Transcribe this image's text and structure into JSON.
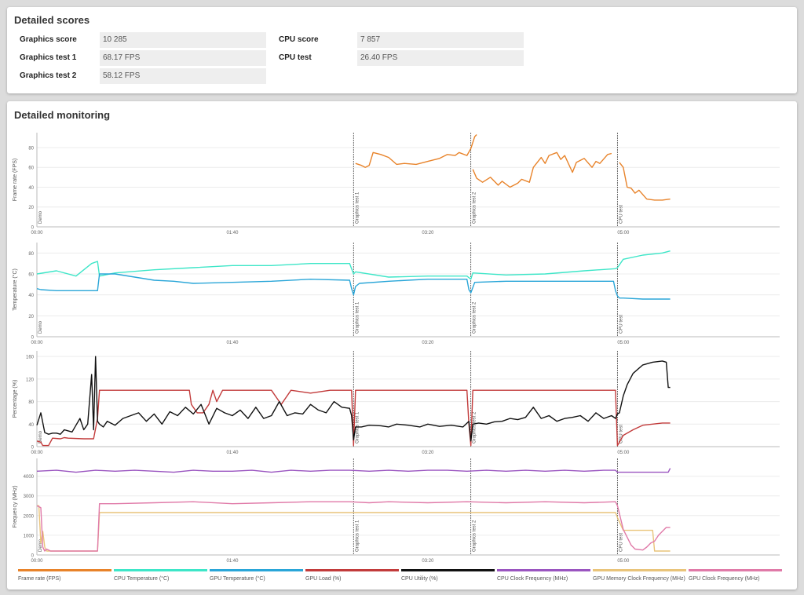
{
  "scores": {
    "title": "Detailed scores",
    "rows": [
      {
        "label": "Graphics score",
        "value": "10 285"
      },
      {
        "label": "Graphics test 1",
        "value": "68.17 FPS"
      },
      {
        "label": "Graphics test 2",
        "value": "58.12 FPS"
      },
      {
        "label": "CPU score",
        "value": "7 857"
      },
      {
        "label": "CPU test",
        "value": "26.40 FPS"
      }
    ]
  },
  "monitoring": {
    "title": "Detailed monitoring"
  },
  "legend": [
    {
      "label": "Frame rate (FPS)",
      "color": "#e8832a"
    },
    {
      "label": "CPU Temperature (°C)",
      "color": "#3ee6c8"
    },
    {
      "label": "GPU Temperature (°C)",
      "color": "#2aa6d8"
    },
    {
      "label": "GPU Load (%)",
      "color": "#c23b3b"
    },
    {
      "label": "CPU Utility (%)",
      "color": "#111111"
    },
    {
      "label": "CPU Clock Frequency (MHz)",
      "color": "#9a55c0"
    },
    {
      "label": "GPU Memory Clock Frequency (MHz)",
      "color": "#e9c47a"
    },
    {
      "label": "GPU Clock Frequency (MHz)",
      "color": "#e07aa8"
    }
  ],
  "chart_data": [
    {
      "type": "line",
      "ylabel": "Frame rate (FPS)",
      "ylim": [
        0,
        95
      ],
      "yticks": [
        0,
        20,
        40,
        60,
        80
      ],
      "xlim": [
        0,
        380
      ],
      "xticks": [
        {
          "v": 0,
          "label": "00:00"
        },
        {
          "v": 100,
          "label": "01:40"
        },
        {
          "v": 200,
          "label": "03:20"
        },
        {
          "v": 300,
          "label": "05:00"
        }
      ],
      "markers": [
        {
          "v": 0,
          "label": "Demo"
        },
        {
          "v": 162,
          "label": "Graphics test 1"
        },
        {
          "v": 222,
          "label": "Graphics test 2"
        },
        {
          "v": 297,
          "label": "CPU test"
        }
      ],
      "series": [
        {
          "name": "Frame rate (FPS)",
          "color": "#e8832a",
          "x": [
            163,
            166,
            168,
            170,
            172,
            176,
            180,
            184,
            188,
            194,
            200,
            206,
            210,
            214,
            216,
            220,
            222,
            224,
            225
          ],
          "y": [
            64,
            62,
            60,
            62,
            75,
            73,
            70,
            63,
            64,
            63,
            66,
            69,
            73,
            72,
            75,
            72,
            79,
            91,
            93
          ]
        },
        {
          "name": "Frame rate (FPS)",
          "color": "#e8832a",
          "x": [
            223,
            225,
            228,
            232,
            236,
            238,
            242,
            246,
            248,
            252,
            254,
            258,
            260,
            262,
            266,
            268,
            270,
            274,
            276,
            280,
            284,
            286,
            288,
            292,
            294
          ],
          "y": [
            58,
            49,
            45,
            50,
            42,
            46,
            40,
            44,
            48,
            45,
            60,
            70,
            64,
            72,
            75,
            68,
            72,
            55,
            65,
            69,
            60,
            66,
            64,
            73,
            74
          ]
        },
        {
          "name": "Frame rate (FPS)",
          "color": "#e8832a",
          "x": [
            298,
            300,
            302,
            304,
            306,
            308,
            312,
            316,
            320,
            324
          ],
          "y": [
            65,
            60,
            40,
            39,
            34,
            37,
            28,
            27,
            27,
            28
          ]
        }
      ]
    },
    {
      "type": "line",
      "ylabel": "Temperature (°C)",
      "ylim": [
        0,
        90
      ],
      "yticks": [
        0,
        20,
        40,
        60,
        80
      ],
      "xlim": [
        0,
        380
      ],
      "xticks": [
        {
          "v": 0,
          "label": "00:00"
        },
        {
          "v": 100,
          "label": "01:40"
        },
        {
          "v": 200,
          "label": "03:20"
        },
        {
          "v": 300,
          "label": "05:00"
        }
      ],
      "markers": [
        {
          "v": 0,
          "label": "Demo"
        },
        {
          "v": 162,
          "label": "Graphics test 1"
        },
        {
          "v": 222,
          "label": "Graphics test 2"
        },
        {
          "v": 297,
          "label": "CPU test"
        }
      ],
      "series": [
        {
          "name": "CPU Temperature (°C)",
          "color": "#3ee6c8",
          "x": [
            0,
            10,
            20,
            28,
            31,
            32,
            40,
            60,
            80,
            100,
            120,
            140,
            160,
            162,
            163,
            180,
            200,
            220,
            222,
            223,
            240,
            260,
            280,
            296,
            297,
            300,
            310,
            320,
            324
          ],
          "y": [
            60,
            63,
            58,
            70,
            72,
            58,
            61,
            64,
            66,
            68,
            68,
            70,
            70,
            60,
            62,
            57,
            58,
            58,
            55,
            61,
            59,
            60,
            63,
            65,
            66,
            74,
            78,
            80,
            82
          ]
        },
        {
          "name": "GPU Temperature (°C)",
          "color": "#2aa6d8",
          "x": [
            0,
            2,
            10,
            20,
            31,
            32,
            40,
            50,
            60,
            70,
            80,
            100,
            120,
            140,
            160,
            161,
            162,
            163,
            165,
            180,
            200,
            220,
            221,
            222,
            223,
            224,
            240,
            260,
            280,
            295,
            296,
            297,
            298,
            300,
            310,
            324
          ],
          "y": [
            46,
            45,
            44,
            44,
            44,
            60,
            60,
            57,
            54,
            53,
            51,
            52,
            53,
            55,
            54,
            46,
            40,
            48,
            51,
            53,
            55,
            55,
            45,
            42,
            47,
            52,
            53,
            53,
            53,
            53,
            44,
            39,
            37,
            37,
            36,
            36
          ]
        }
      ]
    },
    {
      "type": "line",
      "ylabel": "Percentage (%)",
      "ylim": [
        0,
        170
      ],
      "yticks": [
        0,
        40,
        80,
        120,
        160
      ],
      "xlim": [
        0,
        380
      ],
      "xticks": [
        {
          "v": 0,
          "label": "00:00"
        },
        {
          "v": 100,
          "label": "01:40"
        },
        {
          "v": 200,
          "label": "03:20"
        },
        {
          "v": 300,
          "label": "05:00"
        }
      ],
      "markers": [
        {
          "v": 0,
          "label": "Demo"
        },
        {
          "v": 162,
          "label": "Graphics test 1"
        },
        {
          "v": 222,
          "label": "Graphics test 2"
        },
        {
          "v": 297,
          "label": "CPU test"
        }
      ],
      "series": [
        {
          "name": "GPU Load (%)",
          "color": "#c23b3b",
          "x": [
            0,
            2,
            3,
            6,
            8,
            12,
            14,
            16,
            24,
            29,
            31,
            32,
            40,
            60,
            78,
            79,
            82,
            85,
            88,
            90,
            92,
            95,
            110,
            120,
            125,
            130,
            140,
            150,
            158,
            161,
            162,
            163,
            165,
            180,
            200,
            220,
            221,
            222,
            223,
            240,
            260,
            280,
            296,
            297,
            300,
            305,
            310,
            315,
            320,
            324
          ],
          "y": [
            10,
            8,
            2,
            2,
            15,
            14,
            16,
            15,
            14,
            14,
            50,
            100,
            100,
            100,
            100,
            75,
            60,
            60,
            75,
            100,
            80,
            100,
            100,
            100,
            75,
            100,
            95,
            100,
            100,
            100,
            2,
            100,
            100,
            100,
            100,
            100,
            40,
            2,
            100,
            100,
            100,
            100,
            100,
            2,
            20,
            30,
            38,
            40,
            42,
            42
          ]
        },
        {
          "name": "CPU Utility (%)",
          "color": "#111111",
          "x": [
            0,
            2,
            4,
            6,
            8,
            10,
            12,
            14,
            16,
            18,
            20,
            22,
            24,
            26,
            28,
            29,
            30,
            31,
            32,
            34,
            36,
            40,
            44,
            48,
            52,
            56,
            60,
            64,
            68,
            72,
            76,
            80,
            84,
            88,
            92,
            96,
            100,
            104,
            108,
            112,
            116,
            120,
            124,
            128,
            132,
            136,
            140,
            144,
            148,
            152,
            156,
            160,
            161,
            162,
            163,
            166,
            170,
            176,
            180,
            184,
            190,
            196,
            200,
            206,
            212,
            218,
            221,
            222,
            223,
            226,
            230,
            234,
            238,
            242,
            246,
            250,
            254,
            258,
            262,
            266,
            270,
            274,
            278,
            282,
            286,
            290,
            294,
            296,
            297,
            298,
            300,
            302,
            305,
            310,
            315,
            320,
            322,
            323,
            324
          ],
          "y": [
            38,
            60,
            25,
            22,
            24,
            24,
            22,
            30,
            28,
            26,
            38,
            50,
            30,
            40,
            128,
            30,
            160,
            45,
            40,
            35,
            45,
            38,
            50,
            55,
            60,
            45,
            58,
            40,
            62,
            55,
            70,
            58,
            75,
            40,
            68,
            60,
            55,
            65,
            50,
            70,
            50,
            55,
            80,
            55,
            60,
            58,
            75,
            65,
            60,
            80,
            70,
            68,
            55,
            12,
            35,
            35,
            38,
            37,
            35,
            40,
            38,
            35,
            40,
            36,
            38,
            35,
            45,
            10,
            40,
            42,
            40,
            44,
            45,
            50,
            48,
            52,
            70,
            50,
            55,
            45,
            50,
            52,
            55,
            45,
            60,
            50,
            55,
            50,
            58,
            60,
            90,
            110,
            130,
            145,
            150,
            152,
            150,
            105,
            105
          ]
        }
      ]
    },
    {
      "type": "line",
      "ylabel": "Frequency (MHz)",
      "ylim": [
        0,
        4900
      ],
      "yticks": [
        0,
        1000,
        2000,
        3000,
        4000
      ],
      "xlim": [
        0,
        380
      ],
      "xticks": [
        {
          "v": 0,
          "label": "00:00"
        },
        {
          "v": 100,
          "label": "01:40"
        },
        {
          "v": 200,
          "label": "03:20"
        },
        {
          "v": 300,
          "label": "05:00"
        }
      ],
      "markers": [
        {
          "v": 0,
          "label": "Demo"
        },
        {
          "v": 162,
          "label": "Graphics test 1"
        },
        {
          "v": 222,
          "label": "Graphics test 2"
        },
        {
          "v": 297,
          "label": "CPU test"
        }
      ],
      "series": [
        {
          "name": "CPU Clock Frequency (MHz)",
          "color": "#9a55c0",
          "x": [
            0,
            10,
            20,
            30,
            40,
            50,
            60,
            70,
            80,
            90,
            100,
            110,
            120,
            130,
            140,
            150,
            160,
            170,
            180,
            190,
            200,
            210,
            220,
            230,
            240,
            250,
            260,
            270,
            280,
            290,
            296,
            297,
            300,
            310,
            320,
            323,
            324
          ],
          "y": [
            4250,
            4300,
            4200,
            4300,
            4250,
            4300,
            4250,
            4200,
            4300,
            4250,
            4250,
            4300,
            4200,
            4300,
            4250,
            4300,
            4300,
            4250,
            4300,
            4250,
            4300,
            4300,
            4250,
            4300,
            4250,
            4300,
            4250,
            4300,
            4250,
            4300,
            4300,
            4200,
            4200,
            4200,
            4200,
            4200,
            4400
          ]
        },
        {
          "name": "GPU Memory Clock Frequency (MHz)",
          "color": "#e9c47a",
          "x": [
            0,
            1,
            2,
            3,
            4,
            5,
            7,
            20,
            30,
            31,
            32,
            40,
            100,
            160,
            200,
            240,
            296,
            297,
            300,
            302,
            315,
            316,
            324
          ],
          "y": [
            2500,
            2500,
            600,
            1200,
            400,
            200,
            200,
            200,
            200,
            200,
            2150,
            2150,
            2150,
            2150,
            2150,
            2150,
            2150,
            1900,
            1250,
            1250,
            1250,
            200,
            200
          ]
        },
        {
          "name": "GPU Clock Frequency (MHz)",
          "color": "#e07aa8",
          "x": [
            0,
            2,
            3,
            4,
            5,
            7,
            20,
            30,
            31,
            32,
            40,
            60,
            80,
            100,
            120,
            140,
            160,
            170,
            180,
            200,
            220,
            240,
            260,
            280,
            296,
            297,
            300,
            304,
            306,
            310,
            312,
            314,
            316,
            318,
            320,
            322,
            324
          ],
          "y": [
            2500,
            2400,
            400,
            200,
            300,
            200,
            200,
            200,
            200,
            2600,
            2600,
            2650,
            2700,
            2600,
            2650,
            2700,
            2700,
            2650,
            2700,
            2650,
            2700,
            2650,
            2700,
            2650,
            2700,
            2500,
            1300,
            500,
            300,
            250,
            400,
            600,
            700,
            1000,
            1200,
            1400,
            1400
          ]
        }
      ]
    }
  ]
}
